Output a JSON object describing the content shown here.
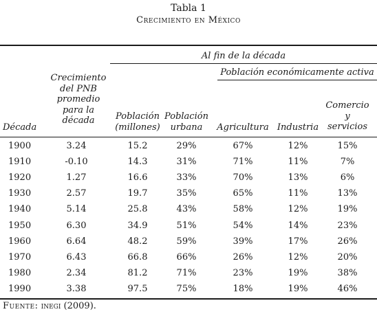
{
  "title": "Tabla 1",
  "subtitle": "Crecimiento en México",
  "group_header": "Al fin de la década",
  "subgroup_header": "Población económicamente activa",
  "columns": [
    [
      "Década"
    ],
    [
      "Crecimiento",
      "del PNB",
      "promedio",
      "para la",
      "década"
    ],
    [
      "Población",
      "(millones)"
    ],
    [
      "Población",
      "urbana"
    ],
    [
      "Agricultura"
    ],
    [
      "Industria"
    ],
    [
      "Comercio",
      "y",
      "servicios"
    ]
  ],
  "rows": [
    [
      "1900",
      "3.24",
      "15.2",
      "29%",
      "67%",
      "12%",
      "15%"
    ],
    [
      "1910",
      "-0.10",
      "14.3",
      "31%",
      "71%",
      "11%",
      "7%"
    ],
    [
      "1920",
      "1.27",
      "16.6",
      "33%",
      "70%",
      "13%",
      "6%"
    ],
    [
      "1930",
      "2.57",
      "19.7",
      "35%",
      "65%",
      "11%",
      "13%"
    ],
    [
      "1940",
      "5.14",
      "25.8",
      "43%",
      "58%",
      "12%",
      "19%"
    ],
    [
      "1950",
      "6.30",
      "34.9",
      "51%",
      "54%",
      "14%",
      "23%"
    ],
    [
      "1960",
      "6.64",
      "48.2",
      "59%",
      "39%",
      "17%",
      "26%"
    ],
    [
      "1970",
      "6.43",
      "66.8",
      "66%",
      "26%",
      "12%",
      "20%"
    ],
    [
      "1980",
      "2.34",
      "81.2",
      "71%",
      "23%",
      "19%",
      "38%"
    ],
    [
      "1990",
      "3.38",
      "97.5",
      "75%",
      "18%",
      "19%",
      "46%"
    ]
  ],
  "source": {
    "label": "Fuente:",
    "org": "inegi",
    "year": "(2009)."
  }
}
